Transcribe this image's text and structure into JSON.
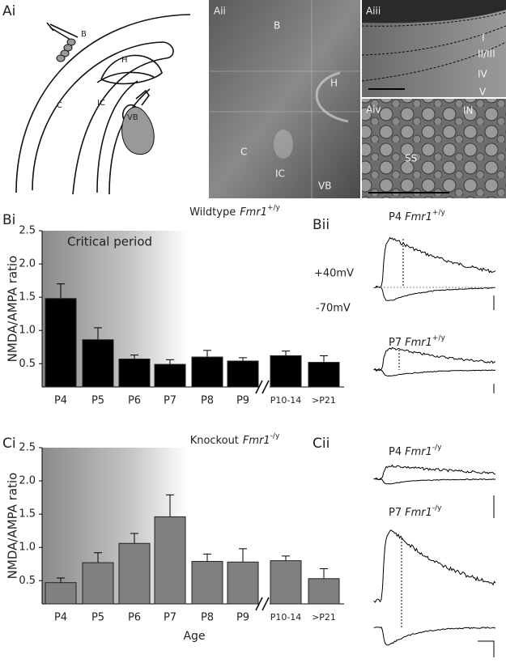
{
  "panels": [
    "Ai",
    "Aii",
    "Aiii",
    "Aiv",
    "Bi",
    "Bii",
    "Ci",
    "Cii"
  ],
  "schematic_labels": [
    "B",
    "H",
    "C",
    "IC",
    "VB"
  ],
  "micrograph_labels": [
    "B",
    "H",
    "C",
    "IC",
    "VB"
  ],
  "layer_labels": [
    "I",
    "II/III",
    "IV",
    "V"
  ],
  "cell_labels": [
    "IN",
    "SS"
  ],
  "chart_data": [
    {
      "type": "bar",
      "title": "Wildtype",
      "title_gene": "Fmr1",
      "title_genotype": "+/y",
      "annotation": "Critical period",
      "ylabel": "NMDA/AMPA ratio",
      "categories": [
        "P4",
        "P5",
        "P6",
        "P7",
        "P8",
        "P9",
        "P10-14",
        ">P21"
      ],
      "values": [
        1.48,
        0.86,
        0.57,
        0.49,
        0.6,
        0.54,
        0.62,
        0.52
      ],
      "errors": [
        0.22,
        0.18,
        0.06,
        0.07,
        0.1,
        0.05,
        0.07,
        0.1
      ],
      "color": "#000000",
      "ylim": [
        0.15,
        2.5
      ],
      "yticks": [
        0.5,
        {
          "value": 1,
          "label": "1.0"
        },
        1.5,
        {
          "value": 2,
          "label": "2.0"
        },
        2.5
      ]
    },
    {
      "type": "bar",
      "title": "Knockout",
      "title_gene": "Fmr1",
      "title_genotype": "-/y",
      "ylabel": "NMDA/AMPA ratio",
      "xlabel": "Age",
      "categories": [
        "P4",
        "P5",
        "P6",
        "P7",
        "P8",
        "P9",
        "P10-14",
        ">P21"
      ],
      "values": [
        0.47,
        0.77,
        1.06,
        1.46,
        0.79,
        0.78,
        0.8,
        0.53
      ],
      "errors": [
        0.07,
        0.15,
        0.15,
        0.33,
        0.11,
        0.2,
        0.07,
        0.15
      ],
      "color": "#808080",
      "ylim": [
        0.15,
        2.5
      ],
      "yticks": [
        0.5,
        {
          "value": 1,
          "label": "1.0"
        },
        1.5,
        {
          "value": 2,
          "label": "2.0"
        },
        2.5
      ]
    }
  ],
  "traces": {
    "holding": [
      "+40mV",
      "-70mV"
    ],
    "labels": [
      {
        "age": "P4",
        "gene": "Fmr1",
        "genotype": "+/y"
      },
      {
        "age": "P7",
        "gene": "Fmr1",
        "genotype": "+/y"
      },
      {
        "age": "P4",
        "gene": "Fmr1",
        "genotype": "-/y"
      },
      {
        "age": "P7",
        "gene": "Fmr1",
        "genotype": "-/y"
      }
    ]
  }
}
